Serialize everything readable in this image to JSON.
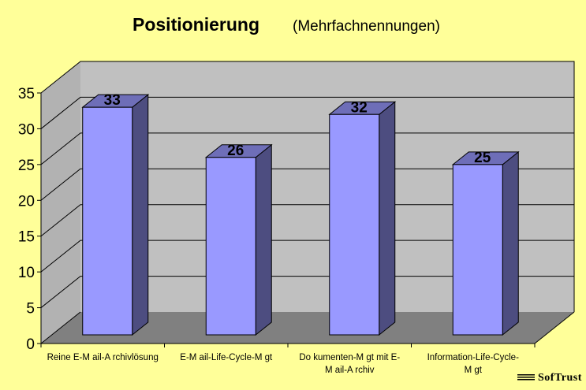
{
  "chart_data": {
    "type": "bar",
    "title": "Positionierung",
    "subtitle": "(Mehrfachnennungen)",
    "categories": [
      [
        "Reine E-M ail-A rchivlösung"
      ],
      [
        "E-M ail-Life-Cycle-M gt"
      ],
      [
        "Do kumenten-M gt mit E-",
        "M ail-A rchiv"
      ],
      [
        "Information-Life-Cycle-",
        "M gt"
      ]
    ],
    "values": [
      33,
      26,
      32,
      25
    ],
    "data_labels": [
      "33",
      "26",
      "32",
      "25"
    ],
    "ylim": [
      0,
      35
    ],
    "yticks": [
      0,
      5,
      10,
      15,
      20,
      25,
      30,
      35
    ],
    "grid": true,
    "three_d": true,
    "colors": {
      "background": "#ffff99",
      "back_wall": "#c0c0c0",
      "side_wall": "#b2b2b2",
      "floor": "#808080",
      "bar_front": "#9999ff",
      "bar_side": "#4d4d80",
      "bar_top": "#6e6eb8"
    }
  },
  "logo": {
    "text": "SofTrust"
  }
}
